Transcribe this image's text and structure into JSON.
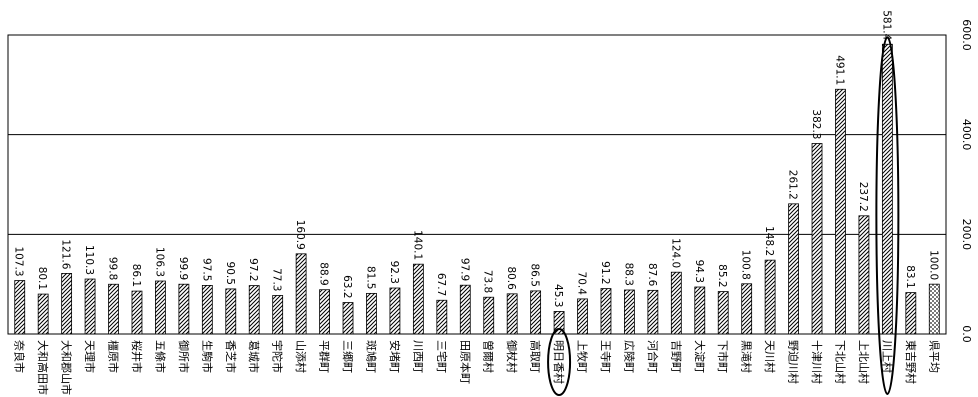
{
  "chart_data": {
    "type": "bar",
    "orientation": "rotated-90-clockwise",
    "categories": [
      "奈良市",
      "大和高田市",
      "大和郡山市",
      "天理市",
      "橿原市",
      "桜井市",
      "五條市",
      "御所市",
      "生駒市",
      "香芝市",
      "葛城市",
      "宇陀市",
      "山添村",
      "平群町",
      "三郷町",
      "斑鳩町",
      "安堵町",
      "川西町",
      "三宅町",
      "田原本町",
      "曽爾村",
      "御杖村",
      "高取町",
      "明日香村",
      "上牧町",
      "王寺町",
      "広陵町",
      "河合町",
      "吉野町",
      "大淀町",
      "下市町",
      "黒滝村",
      "天川村",
      "野迫川村",
      "十津川村",
      "下北山村",
      "上北山村",
      "川上村",
      "東吉野村",
      "県平均"
    ],
    "values": [
      107.3,
      80.1,
      121.6,
      110.3,
      99.8,
      86.1,
      106.3,
      99.9,
      97.5,
      90.5,
      97.2,
      77.3,
      160.9,
      88.9,
      63.2,
      81.5,
      92.3,
      140.1,
      67.7,
      97.9,
      73.8,
      80.6,
      86.5,
      45.3,
      70.4,
      91.2,
      88.3,
      87.6,
      124.0,
      94.3,
      85.2,
      100.8,
      148.2,
      261.2,
      382.3,
      491.1,
      237.2,
      581.4,
      83.1,
      100.0
    ],
    "value_labels": [
      "107.3",
      "80.1",
      "121.6",
      "110.3",
      "99.8",
      "86.1",
      "106.3",
      "99.9",
      "97.5",
      "90.5",
      "97.2",
      "77.3",
      "160.9",
      "88.9",
      "63.2",
      "81.5",
      "92.3",
      "140.1",
      "67.7",
      "97.9",
      "73.8",
      "80.6",
      "86.5",
      "45.3",
      "70.4",
      "91.2",
      "88.3",
      "87.6",
      "124.0",
      "94.3",
      "85.2",
      "100.8",
      "148.2",
      "261.2",
      "382.3",
      "491.1",
      "237.2",
      "581.4",
      "83.1",
      "100.0"
    ],
    "ylim": [
      0,
      600
    ],
    "yticks": [
      "0.0",
      "200.0",
      "400.0",
      "600.0"
    ],
    "gridlines": "major y",
    "highlighted": [
      "明日香村",
      "川上村"
    ],
    "average_category": "県平均",
    "colors": {
      "bar_stroke": "#000000",
      "hatch": "#000000",
      "average_fill": "#9a9a9a",
      "grid": "#000000"
    }
  }
}
